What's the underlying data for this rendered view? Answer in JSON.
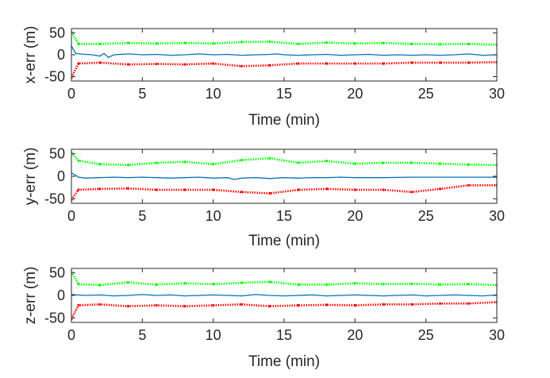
{
  "chart_data": [
    {
      "type": "line",
      "xlabel": "Time (min)",
      "ylabel": "x-err (m)",
      "xlim": [
        0,
        30
      ],
      "ylim": [
        -60,
        60
      ],
      "xticks": [
        0,
        5,
        10,
        15,
        20,
        25,
        30
      ],
      "yticks": [
        50,
        0,
        -50
      ],
      "colors": {
        "error": "#0072BD",
        "upper": "#00FF00",
        "lower": "#FF0000"
      },
      "series": [
        {
          "role": "error",
          "x": [
            0,
            0.3,
            0.6,
            1,
            1.5,
            2,
            2.3,
            2.6,
            3,
            4,
            5,
            6,
            7,
            8,
            9,
            10,
            11,
            12,
            13,
            14,
            14.5,
            15,
            16,
            17,
            18,
            19,
            20,
            21,
            22,
            23,
            24,
            25,
            26,
            27,
            28,
            29,
            30
          ],
          "y": [
            20,
            3,
            2,
            1,
            0,
            -3,
            3,
            -6,
            0,
            2,
            0,
            1,
            -1,
            0,
            2,
            0,
            1,
            -1,
            0,
            1,
            2,
            0,
            -1,
            0,
            1,
            -1,
            0,
            1,
            -1,
            0,
            -1,
            0,
            -1,
            0,
            2,
            -1,
            0
          ]
        },
        {
          "role": "upper",
          "x": [
            0,
            0.5,
            2,
            4,
            6,
            8,
            10,
            12,
            14,
            16,
            18,
            20,
            22,
            24,
            26,
            28,
            30
          ],
          "y": [
            52,
            25,
            25,
            27,
            26,
            27,
            26,
            29,
            30,
            25,
            28,
            26,
            27,
            25,
            24,
            25,
            23
          ]
        },
        {
          "role": "lower",
          "x": [
            0,
            0.5,
            2,
            4,
            6,
            8,
            10,
            12,
            14,
            16,
            18,
            20,
            22,
            24,
            26,
            28,
            30
          ],
          "y": [
            -52,
            -20,
            -18,
            -22,
            -21,
            -22,
            -20,
            -26,
            -24,
            -20,
            -20,
            -20,
            -20,
            -18,
            -18,
            -18,
            -17
          ]
        }
      ]
    },
    {
      "type": "line",
      "xlabel": "Time (min)",
      "ylabel": "y-err (m)",
      "xlim": [
        0,
        30
      ],
      "ylim": [
        -60,
        60
      ],
      "xticks": [
        0,
        5,
        10,
        15,
        20,
        25,
        30
      ],
      "yticks": [
        50,
        0,
        -50
      ],
      "colors": {
        "error": "#0072BD",
        "upper": "#00FF00",
        "lower": "#FF0000"
      },
      "series": [
        {
          "role": "error",
          "x": [
            0,
            0.5,
            1,
            2,
            3,
            4,
            5,
            6,
            7,
            8,
            9,
            10,
            11,
            11.5,
            12,
            13,
            14,
            15,
            16,
            17,
            18,
            19,
            20,
            22,
            24,
            26,
            28,
            30
          ],
          "y": [
            8,
            -2,
            -4,
            -3,
            -2,
            -3,
            -2,
            -3,
            -4,
            -3,
            -2,
            -4,
            -3,
            -7,
            -4,
            -3,
            -5,
            -3,
            -4,
            -3,
            -3,
            -2,
            -3,
            -3,
            -2,
            -2,
            -2,
            -2
          ]
        },
        {
          "role": "upper",
          "x": [
            0,
            0.5,
            2,
            4,
            6,
            8,
            10,
            12,
            14,
            16,
            18,
            20,
            22,
            24,
            26,
            28,
            30
          ],
          "y": [
            52,
            35,
            27,
            25,
            30,
            32,
            27,
            36,
            40,
            30,
            34,
            28,
            30,
            30,
            28,
            26,
            25
          ]
        },
        {
          "role": "lower",
          "x": [
            0,
            0.5,
            2,
            4,
            6,
            8,
            10,
            12,
            14,
            16,
            18,
            20,
            22,
            24,
            26,
            28,
            30
          ],
          "y": [
            -52,
            -30,
            -28,
            -27,
            -30,
            -30,
            -30,
            -35,
            -38,
            -30,
            -28,
            -30,
            -30,
            -35,
            -28,
            -20,
            -20
          ]
        }
      ]
    },
    {
      "type": "line",
      "xlabel": "Time (min)",
      "ylabel": "z-err (m)",
      "xlim": [
        0,
        30
      ],
      "ylim": [
        -60,
        60
      ],
      "xticks": [
        0,
        5,
        10,
        15,
        20,
        25,
        30
      ],
      "yticks": [
        50,
        0,
        -50
      ],
      "colors": {
        "error": "#0072BD",
        "upper": "#00FF00",
        "lower": "#FF0000"
      },
      "series": [
        {
          "role": "error",
          "x": [
            0,
            1,
            2,
            3,
            4,
            5,
            6,
            7,
            8,
            9,
            10,
            11,
            12,
            13,
            14,
            15,
            16,
            17,
            18,
            19,
            20,
            21,
            22,
            23,
            24,
            25,
            26,
            27,
            28,
            29,
            30
          ],
          "y": [
            2,
            0,
            1,
            -1,
            0,
            2,
            0,
            1,
            -1,
            0,
            1,
            0,
            -1,
            2,
            0,
            -1,
            0,
            1,
            -1,
            0,
            1,
            0,
            -1,
            0,
            1,
            -1,
            0,
            1,
            0,
            -1,
            1
          ]
        },
        {
          "role": "upper",
          "x": [
            0,
            0.5,
            2,
            4,
            6,
            8,
            10,
            12,
            14,
            16,
            18,
            20,
            22,
            24,
            26,
            28,
            30
          ],
          "y": [
            52,
            25,
            23,
            29,
            24,
            27,
            25,
            28,
            30,
            24,
            24,
            27,
            25,
            26,
            24,
            25,
            23
          ]
        },
        {
          "role": "lower",
          "x": [
            0,
            0.5,
            2,
            4,
            6,
            8,
            10,
            12,
            14,
            16,
            18,
            20,
            22,
            24,
            26,
            28,
            30
          ],
          "y": [
            -52,
            -22,
            -20,
            -24,
            -22,
            -24,
            -22,
            -20,
            -24,
            -22,
            -21,
            -22,
            -20,
            -20,
            -18,
            -18,
            -15
          ]
        }
      ]
    }
  ]
}
